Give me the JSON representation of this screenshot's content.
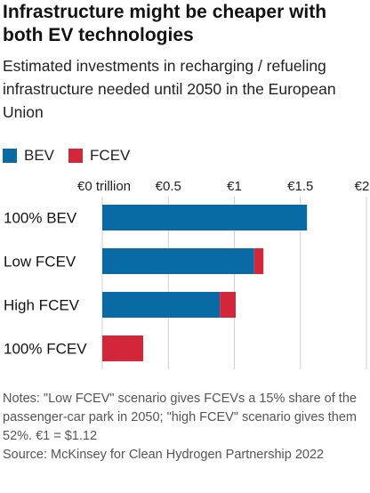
{
  "title": "Infrastructure might be cheaper with both EV technologies",
  "subtitle": "Estimated investments in recharging / refueling infrastructure needed until 2050 in the European Union",
  "colors": {
    "bev": "#0a6aa6",
    "fcev": "#d4263a",
    "grid": "#cfcfcf",
    "text": "#121212"
  },
  "chart_data": {
    "type": "bar",
    "orientation": "horizontal",
    "stacked": true,
    "categories": [
      "100% BEV",
      "Low FCEV",
      "High FCEV",
      "100% FCEV"
    ],
    "series": [
      {
        "name": "BEV",
        "values": [
          1.55,
          1.15,
          0.89,
          0.0
        ]
      },
      {
        "name": "FCEV",
        "values": [
          0.0,
          0.07,
          0.12,
          0.31
        ]
      }
    ],
    "ticks": [
      0,
      0.5,
      1,
      1.5,
      2
    ],
    "tick_labels": [
      "€0 trillion",
      "€0.5",
      "€1",
      "€1.5",
      "€2"
    ],
    "xlim": [
      0,
      2
    ],
    "grid": true,
    "legend_position": "top-left"
  },
  "notes": {
    "text": "Notes: \"Low FCEV\" scenario gives FCEVs a 15% share of the passenger-car park in 2050; \"high FCEV\" scenario gives them 52%. €1 = $1.12",
    "source": "Source: McKinsey for Clean Hydrogen Partnership 2022"
  }
}
